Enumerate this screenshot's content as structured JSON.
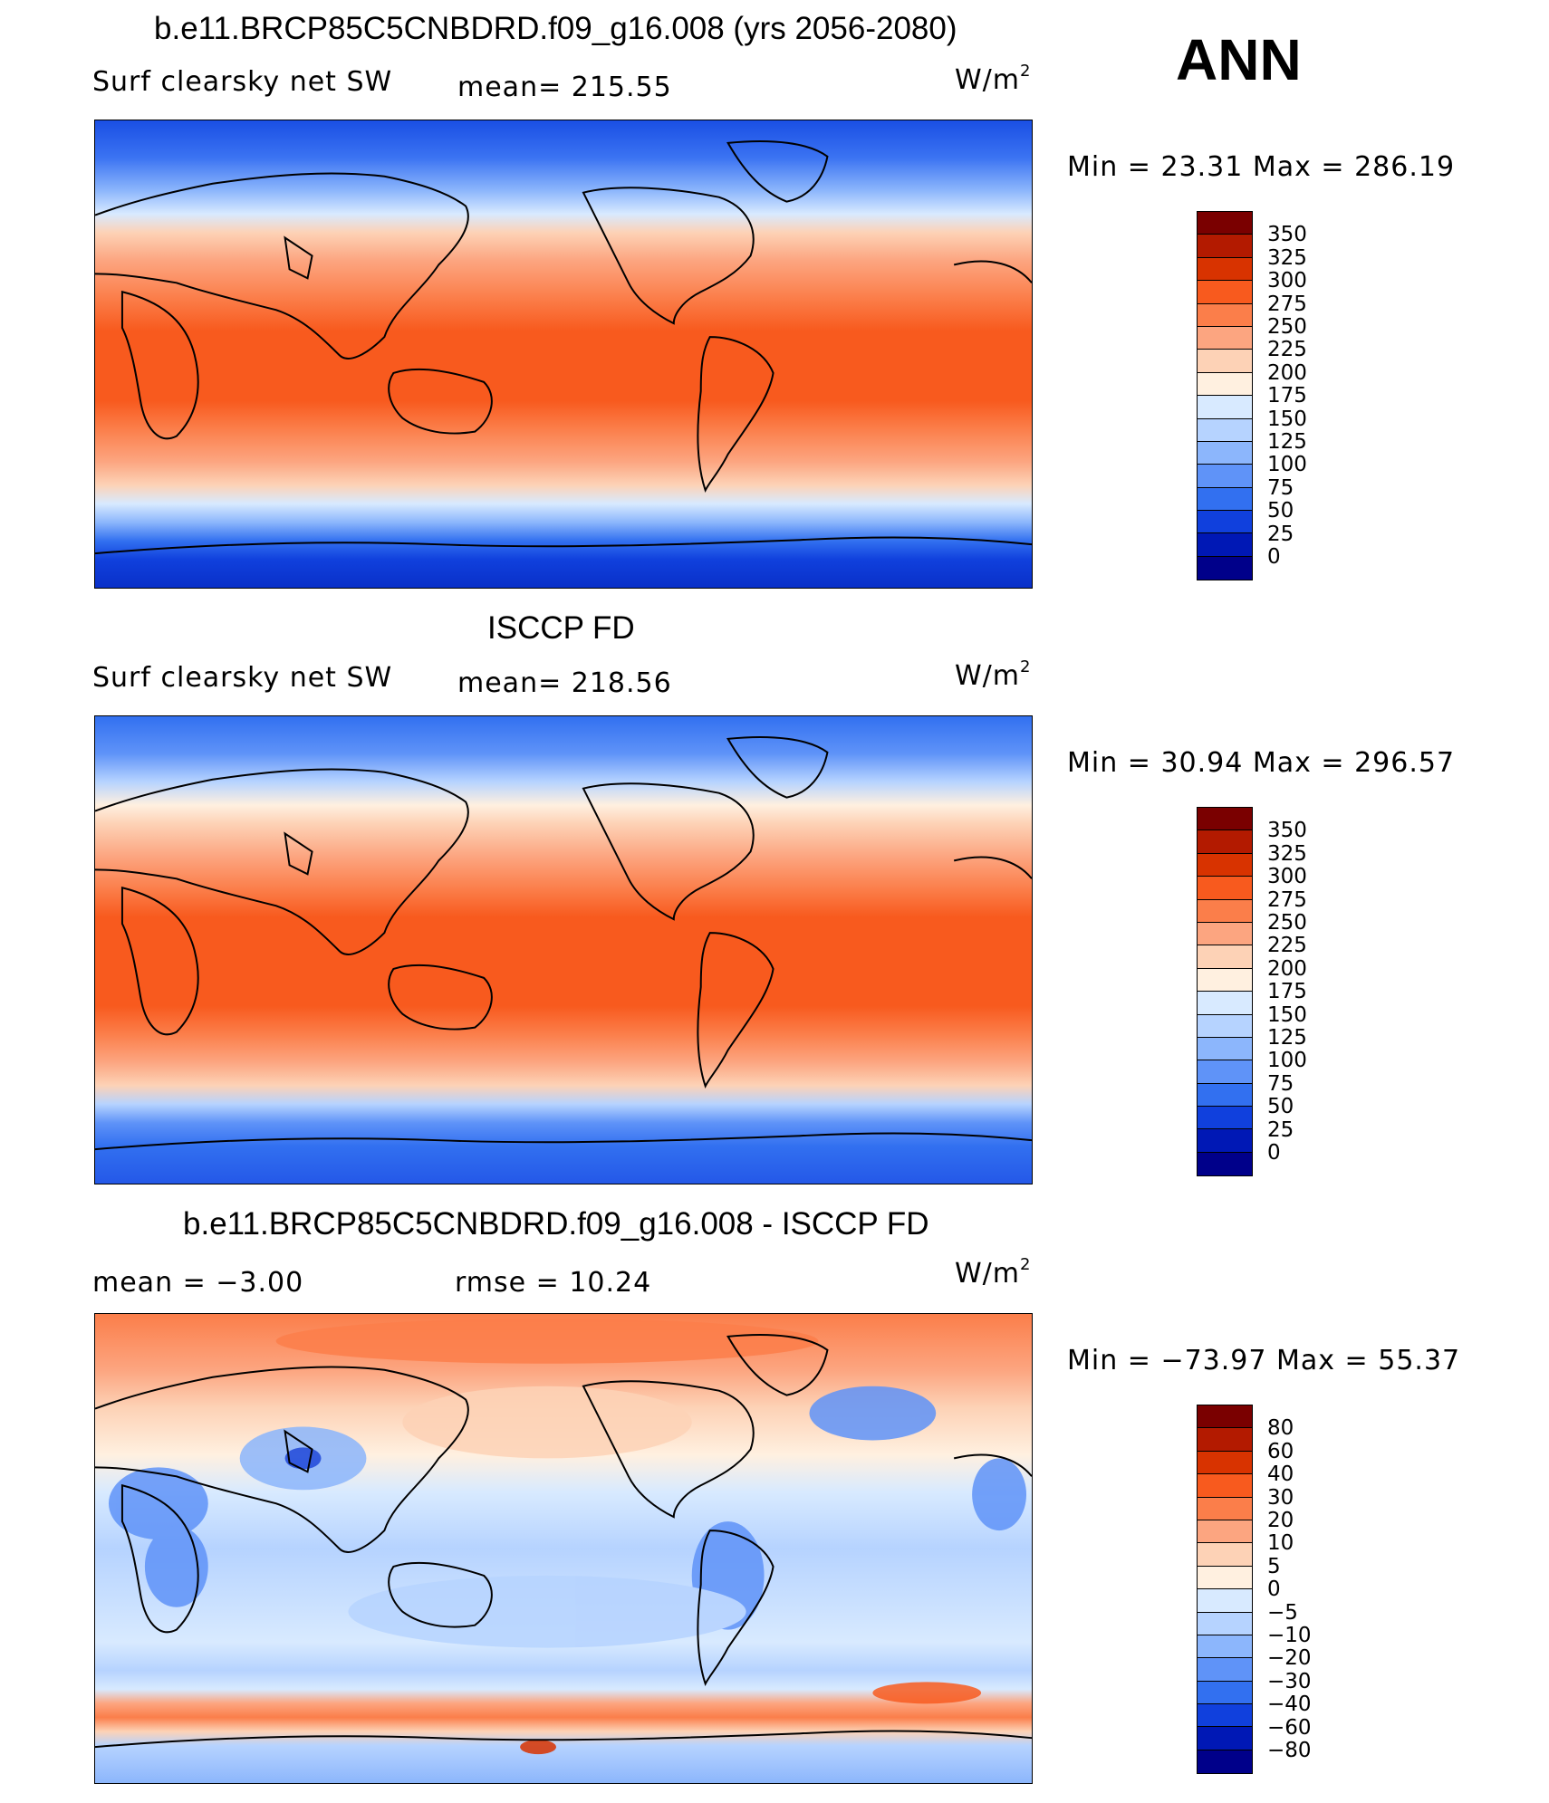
{
  "season": "ANN",
  "units_prefix": "W/m",
  "units_exp": "2",
  "panel1": {
    "title": "b.e11.BRCP85C5CNBDRD.f09_g16.008 (yrs 2056-2080)",
    "variable": "Surf clearsky net SW",
    "mean_text": "mean=  215.55",
    "minmax_text": "Min  =    23.31  Max  =  286.19",
    "levels": [
      "350",
      "325",
      "300",
      "275",
      "250",
      "225",
      "200",
      "175",
      "150",
      "125",
      "100",
      "75",
      "50",
      "25",
      "0"
    ],
    "colors": [
      "#7a0000",
      "#b31a00",
      "#d83300",
      "#f85a1e",
      "#fb7e4a",
      "#fca580",
      "#fdd2b6",
      "#fff0e0",
      "#d8eaff",
      "#b6d3ff",
      "#8cb6fc",
      "#5f93f8",
      "#3270f0",
      "#1040dd",
      "#0018b5",
      "#00008a"
    ]
  },
  "panel2": {
    "title": "ISCCP FD",
    "variable": "Surf clearsky net SW",
    "mean_text": "mean=  218.56",
    "minmax_text": "Min  =    30.94  Max  =  296.57",
    "levels": [
      "350",
      "325",
      "300",
      "275",
      "250",
      "225",
      "200",
      "175",
      "150",
      "125",
      "100",
      "75",
      "50",
      "25",
      "0"
    ],
    "colors": [
      "#7a0000",
      "#b31a00",
      "#d83300",
      "#f85a1e",
      "#fb7e4a",
      "#fca580",
      "#fdd2b6",
      "#fff0e0",
      "#d8eaff",
      "#b6d3ff",
      "#8cb6fc",
      "#5f93f8",
      "#3270f0",
      "#1040dd",
      "#0018b5",
      "#00008a"
    ]
  },
  "panel3": {
    "title": "b.e11.BRCP85C5CNBDRD.f09_g16.008 - ISCCP FD",
    "mean_text": "mean  =    −3.00",
    "rmse_text": "rmse  =    10.24",
    "minmax_text": "Min  =  −73.97  Max  =    55.37",
    "levels": [
      "80",
      "60",
      "40",
      "30",
      "20",
      "10",
      "5",
      "0",
      "−5",
      "−10",
      "−20",
      "−30",
      "−40",
      "−60",
      "−80"
    ],
    "colors": [
      "#7a0000",
      "#b31a00",
      "#d83300",
      "#f85a1e",
      "#fb7e4a",
      "#fca580",
      "#fdd2b6",
      "#fff0e0",
      "#d8eaff",
      "#b6d3ff",
      "#8cb6fc",
      "#5f93f8",
      "#3270f0",
      "#1040dd",
      "#0018b5",
      "#00008a"
    ]
  }
}
